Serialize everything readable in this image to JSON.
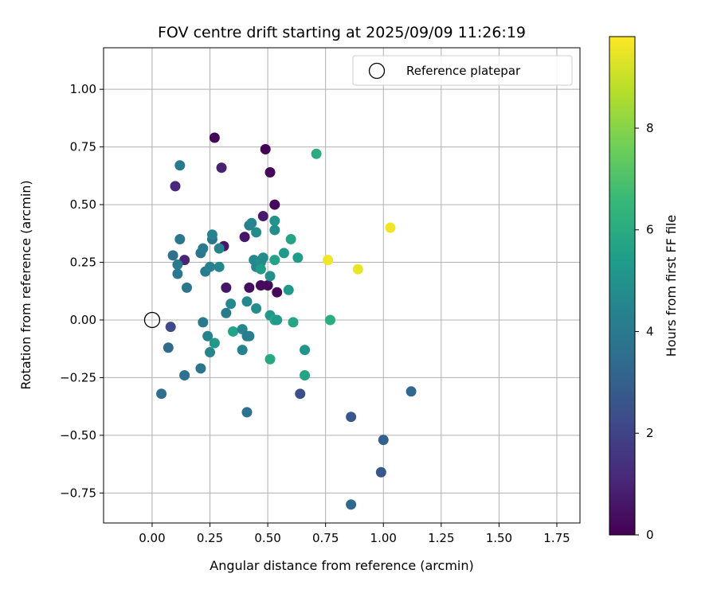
{
  "chart_data": {
    "type": "scatter",
    "title": "FOV centre drift starting at 2025/09/09 11:26:19",
    "xlabel": "Angular distance from reference (arcmin)",
    "ylabel": "Rotation from reference (arcmin)",
    "xlim": [
      -0.21,
      1.85
    ],
    "ylim": [
      -0.88,
      1.18
    ],
    "xticks": [
      0.0,
      0.25,
      0.5,
      0.75,
      1.0,
      1.25,
      1.5,
      1.75
    ],
    "xtick_labels": [
      "0.00",
      "0.25",
      "0.50",
      "0.75",
      "1.00",
      "1.25",
      "1.50",
      "1.75"
    ],
    "yticks": [
      -0.75,
      -0.5,
      -0.25,
      0.0,
      0.25,
      0.5,
      0.75,
      1.0
    ],
    "ytick_labels": [
      "−0.75",
      "−0.50",
      "−0.25",
      "0.00",
      "0.25",
      "0.50",
      "0.75",
      "1.00"
    ],
    "grid": true,
    "legend": {
      "label": "Reference platepar",
      "position": "top-right"
    },
    "reference_point": {
      "x": 0.0,
      "y": 0.0
    },
    "colorbar": {
      "label": "Hours from first FF file",
      "min": 0,
      "max": 9.8,
      "ticks": [
        0,
        2,
        4,
        6,
        8
      ],
      "tick_labels": [
        "0",
        "2",
        "4",
        "6",
        "8"
      ],
      "colormap_stops": [
        "#440154",
        "#482878",
        "#3e4989",
        "#31688e",
        "#26828e",
        "#1f9e89",
        "#35b779",
        "#6ece58",
        "#b5de2b",
        "#fde725"
      ]
    },
    "series": [
      {
        "name": "Hours from first FF file",
        "points": [
          {
            "x": 0.27,
            "y": 0.79,
            "c": 0.1
          },
          {
            "x": 0.49,
            "y": 0.74,
            "c": 0.1
          },
          {
            "x": 0.51,
            "y": 0.64,
            "c": 0.2
          },
          {
            "x": 0.3,
            "y": 0.66,
            "c": 0.9
          },
          {
            "x": 0.53,
            "y": 0.5,
            "c": 0.2
          },
          {
            "x": 0.48,
            "y": 0.45,
            "c": 0.7
          },
          {
            "x": 0.4,
            "y": 0.36,
            "c": 0.6
          },
          {
            "x": 0.31,
            "y": 0.32,
            "c": 0.6
          },
          {
            "x": 0.1,
            "y": 0.58,
            "c": 1.1
          },
          {
            "x": 0.14,
            "y": 0.26,
            "c": 1.0
          },
          {
            "x": 0.32,
            "y": 0.14,
            "c": 0.6
          },
          {
            "x": 0.42,
            "y": 0.14,
            "c": 0.4
          },
          {
            "x": 0.47,
            "y": 0.15,
            "c": 0.3
          },
          {
            "x": 0.5,
            "y": 0.15,
            "c": 0.2
          },
          {
            "x": 0.54,
            "y": 0.12,
            "c": 0.2
          },
          {
            "x": 0.08,
            "y": -0.03,
            "c": 2.2
          },
          {
            "x": 0.64,
            "y": -0.32,
            "c": 2.4
          },
          {
            "x": 0.86,
            "y": -0.42,
            "c": 2.7
          },
          {
            "x": 0.99,
            "y": -0.66,
            "c": 2.7
          },
          {
            "x": 1.0,
            "y": -0.52,
            "c": 3.0
          },
          {
            "x": 0.86,
            "y": -0.8,
            "c": 3.3
          },
          {
            "x": 1.12,
            "y": -0.31,
            "c": 3.3
          },
          {
            "x": 0.04,
            "y": -0.32,
            "c": 3.5
          },
          {
            "x": 0.07,
            "y": -0.12,
            "c": 3.4
          },
          {
            "x": 0.14,
            "y": -0.24,
            "c": 3.6
          },
          {
            "x": 0.21,
            "y": -0.21,
            "c": 3.8
          },
          {
            "x": 0.41,
            "y": -0.4,
            "c": 3.7
          },
          {
            "x": 0.09,
            "y": 0.28,
            "c": 3.6
          },
          {
            "x": 0.12,
            "y": 0.35,
            "c": 3.9
          },
          {
            "x": 0.12,
            "y": 0.67,
            "c": 4.0
          },
          {
            "x": 0.11,
            "y": 0.2,
            "c": 3.9
          },
          {
            "x": 0.11,
            "y": 0.24,
            "c": 4.0
          },
          {
            "x": 0.15,
            "y": 0.14,
            "c": 3.9
          },
          {
            "x": 0.21,
            "y": 0.29,
            "c": 3.8
          },
          {
            "x": 0.22,
            "y": 0.31,
            "c": 4.0
          },
          {
            "x": 0.23,
            "y": 0.21,
            "c": 4.1
          },
          {
            "x": 0.25,
            "y": 0.23,
            "c": 4.3
          },
          {
            "x": 0.26,
            "y": 0.35,
            "c": 3.8
          },
          {
            "x": 0.26,
            "y": 0.37,
            "c": 4.3
          },
          {
            "x": 0.29,
            "y": 0.31,
            "c": 4.4
          },
          {
            "x": 0.29,
            "y": 0.23,
            "c": 4.5
          },
          {
            "x": 0.22,
            "y": -0.01,
            "c": 4.0
          },
          {
            "x": 0.24,
            "y": -0.07,
            "c": 4.4
          },
          {
            "x": 0.25,
            "y": -0.14,
            "c": 4.5
          },
          {
            "x": 0.27,
            "y": -0.1,
            "c": 5.2
          },
          {
            "x": 0.32,
            "y": 0.03,
            "c": 4.0
          },
          {
            "x": 0.34,
            "y": 0.07,
            "c": 4.6
          },
          {
            "x": 0.35,
            "y": -0.05,
            "c": 5.6
          },
          {
            "x": 0.39,
            "y": -0.04,
            "c": 4.5
          },
          {
            "x": 0.39,
            "y": -0.13,
            "c": 4.4
          },
          {
            "x": 0.41,
            "y": -0.07,
            "c": 4.0
          },
          {
            "x": 0.42,
            "y": -0.07,
            "c": 4.2
          },
          {
            "x": 0.41,
            "y": 0.08,
            "c": 4.6
          },
          {
            "x": 0.45,
            "y": 0.05,
            "c": 4.8
          },
          {
            "x": 0.42,
            "y": 0.41,
            "c": 4.3
          },
          {
            "x": 0.43,
            "y": 0.42,
            "c": 4.5
          },
          {
            "x": 0.45,
            "y": 0.38,
            "c": 4.7
          },
          {
            "x": 0.44,
            "y": 0.26,
            "c": 4.6
          },
          {
            "x": 0.45,
            "y": 0.23,
            "c": 4.5
          },
          {
            "x": 0.47,
            "y": 0.25,
            "c": 4.8
          },
          {
            "x": 0.48,
            "y": 0.27,
            "c": 4.7
          },
          {
            "x": 0.47,
            "y": 0.22,
            "c": 5.4
          },
          {
            "x": 0.51,
            "y": 0.19,
            "c": 4.9
          },
          {
            "x": 0.53,
            "y": 0.39,
            "c": 4.8
          },
          {
            "x": 0.53,
            "y": 0.43,
            "c": 5.0
          },
          {
            "x": 0.53,
            "y": 0.26,
            "c": 5.6
          },
          {
            "x": 0.57,
            "y": 0.29,
            "c": 5.3
          },
          {
            "x": 0.6,
            "y": 0.35,
            "c": 5.7
          },
          {
            "x": 0.63,
            "y": 0.27,
            "c": 5.4
          },
          {
            "x": 0.59,
            "y": 0.13,
            "c": 5.2
          },
          {
            "x": 0.51,
            "y": 0.02,
            "c": 5.2
          },
          {
            "x": 0.53,
            "y": 0.0,
            "c": 5.7
          },
          {
            "x": 0.54,
            "y": 0.0,
            "c": 5.3
          },
          {
            "x": 0.61,
            "y": -0.01,
            "c": 5.8
          },
          {
            "x": 0.51,
            "y": -0.17,
            "c": 5.9
          },
          {
            "x": 0.66,
            "y": -0.13,
            "c": 5.1
          },
          {
            "x": 0.66,
            "y": -0.24,
            "c": 5.7
          },
          {
            "x": 0.77,
            "y": 0.0,
            "c": 6.1
          },
          {
            "x": 0.71,
            "y": 0.72,
            "c": 6.0
          },
          {
            "x": 0.76,
            "y": 0.26,
            "c": 9.6
          },
          {
            "x": 0.89,
            "y": 0.22,
            "c": 9.5
          },
          {
            "x": 1.03,
            "y": 0.4,
            "c": 9.6
          }
        ]
      }
    ]
  }
}
